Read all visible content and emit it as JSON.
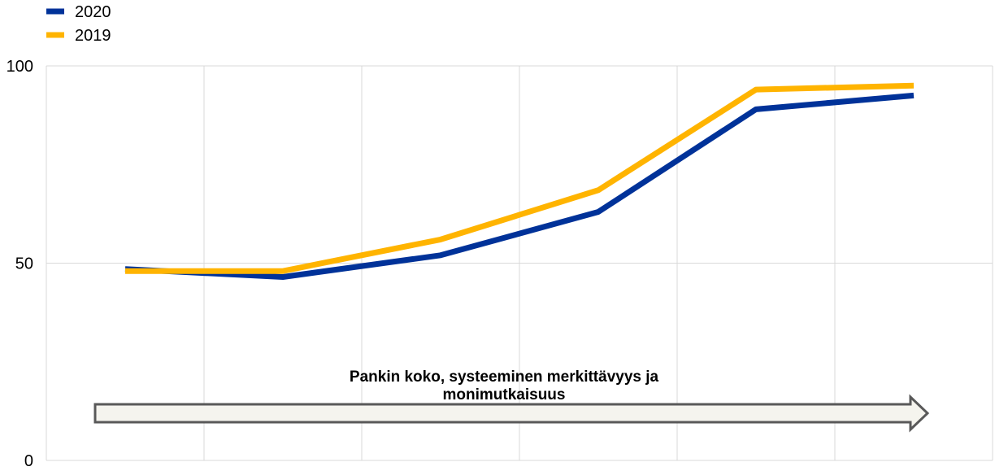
{
  "chart_data": {
    "type": "line",
    "title": "",
    "xlabel": "",
    "ylabel": "",
    "x": [
      1,
      2,
      3,
      4,
      5,
      6
    ],
    "ylim": [
      0,
      100
    ],
    "yticks": [
      0,
      50,
      100
    ],
    "grid": true,
    "legend_position": "top-left",
    "series": [
      {
        "name": "2020",
        "color": "#003299",
        "values": [
          48.5,
          46.5,
          52,
          63,
          89,
          92.5
        ]
      },
      {
        "name": "2019",
        "color": "#FFB400",
        "values": [
          48,
          48,
          56,
          68.5,
          94,
          95
        ]
      }
    ],
    "annotation": {
      "lines": [
        "Pankin koko, systeeminen merkittävyys ja",
        "monimutkaisuus"
      ],
      "arrow_fill": "#F5F4EE",
      "arrow_stroke": "#595959"
    }
  }
}
